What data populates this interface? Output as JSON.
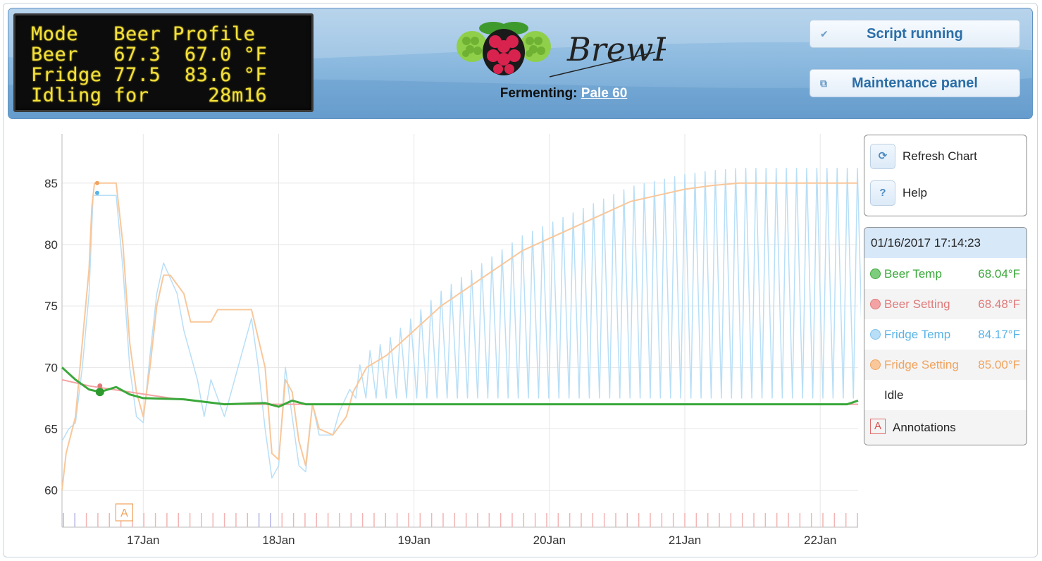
{
  "lcd": {
    "lines": [
      "Mode   Beer Profile",
      "Beer   67.3  67.0 °F",
      "Fridge 77.5  83.6 °F",
      "Idling for     28m16"
    ]
  },
  "header": {
    "logo_text": "BrewPi",
    "fermenting_label": "Fermenting:",
    "profile_name": "Pale 60",
    "script_button": "Script running",
    "maintenance_button": "Maintenance panel",
    "script_icon": "checkmark-icon",
    "maintenance_icon": "window-icon"
  },
  "tools": {
    "refresh_label": "Refresh Chart",
    "help_label": "Help",
    "refresh_icon": "refresh-icon",
    "help_icon": "question-icon"
  },
  "legend": {
    "timestamp": "01/16/2017 17:14:23",
    "items": [
      {
        "name": "Beer Temp",
        "value": "68.04°F",
        "color": "#3aa83a"
      },
      {
        "name": "Beer Setting",
        "value": "68.48°F",
        "color": "#e07a7a"
      },
      {
        "name": "Fridge Temp",
        "value": "84.17°F",
        "color": "#5ab3e6"
      },
      {
        "name": "Fridge Setting",
        "value": "85.00°F",
        "color": "#f0a35e"
      },
      {
        "name": "Idle",
        "value": ""
      }
    ],
    "annotations_label": "Annotations",
    "annotation_symbol": "A"
  },
  "chart_data": {
    "type": "line",
    "x_unit": "day",
    "xlim": [
      16.4,
      22.28
    ],
    "ylim": [
      57,
      89
    ],
    "y_ticks": [
      60,
      65,
      70,
      75,
      80,
      85
    ],
    "x_ticks": [
      {
        "value": 17,
        "label": "17Jan"
      },
      {
        "value": 18,
        "label": "18Jan"
      },
      {
        "value": 19,
        "label": "19Jan"
      },
      {
        "value": 20,
        "label": "20Jan"
      },
      {
        "value": 21,
        "label": "21Jan"
      },
      {
        "value": 22,
        "label": "22Jan"
      }
    ],
    "grid": true,
    "annotation": {
      "x": 16.86,
      "label": "A"
    },
    "series": [
      {
        "name": "Fridge Setting",
        "color": "#f9c79a",
        "points": [
          [
            16.4,
            60
          ],
          [
            16.43,
            63
          ],
          [
            16.5,
            66
          ],
          [
            16.55,
            72
          ],
          [
            16.6,
            78
          ],
          [
            16.62,
            83
          ],
          [
            16.64,
            85
          ],
          [
            16.8,
            85
          ],
          [
            16.85,
            80
          ],
          [
            16.9,
            72
          ],
          [
            16.95,
            68
          ],
          [
            17.0,
            66
          ],
          [
            17.05,
            70
          ],
          [
            17.1,
            75
          ],
          [
            17.15,
            77.5
          ],
          [
            17.2,
            77.5
          ],
          [
            17.3,
            76
          ],
          [
            17.35,
            73.7
          ],
          [
            17.5,
            73.7
          ],
          [
            17.55,
            74.7
          ],
          [
            17.8,
            74.7
          ],
          [
            17.9,
            70
          ],
          [
            17.95,
            63
          ],
          [
            18.0,
            62.5
          ],
          [
            18.05,
            69
          ],
          [
            18.1,
            68
          ],
          [
            18.15,
            64
          ],
          [
            18.2,
            62
          ],
          [
            18.25,
            67
          ],
          [
            18.3,
            65
          ],
          [
            18.4,
            64.5
          ],
          [
            18.5,
            66
          ],
          [
            18.55,
            68
          ],
          [
            18.65,
            70
          ],
          [
            18.8,
            71
          ],
          [
            19.0,
            73
          ],
          [
            19.2,
            75
          ],
          [
            19.4,
            76.5
          ],
          [
            19.6,
            78
          ],
          [
            19.8,
            79.5
          ],
          [
            20.0,
            80.5
          ],
          [
            20.2,
            81.5
          ],
          [
            20.4,
            82.5
          ],
          [
            20.6,
            83.5
          ],
          [
            20.8,
            84
          ],
          [
            21.0,
            84.5
          ],
          [
            21.2,
            84.8
          ],
          [
            21.4,
            85
          ],
          [
            22.28,
            85
          ]
        ]
      },
      {
        "name": "Fridge Temp",
        "color": "#b8dff7",
        "points": [
          [
            16.4,
            64
          ],
          [
            16.45,
            65
          ],
          [
            16.5,
            65.5
          ],
          [
            16.55,
            70
          ],
          [
            16.6,
            76
          ],
          [
            16.63,
            84
          ],
          [
            16.8,
            84
          ],
          [
            16.85,
            78
          ],
          [
            16.9,
            70
          ],
          [
            16.95,
            66
          ],
          [
            17.0,
            65.5
          ],
          [
            17.05,
            71
          ],
          [
            17.1,
            76
          ],
          [
            17.15,
            78.5
          ],
          [
            17.25,
            76
          ],
          [
            17.3,
            73
          ],
          [
            17.4,
            69
          ],
          [
            17.45,
            66
          ],
          [
            17.5,
            69
          ],
          [
            17.6,
            66
          ],
          [
            17.7,
            70
          ],
          [
            17.8,
            74
          ],
          [
            17.85,
            70
          ],
          [
            17.9,
            65
          ],
          [
            17.95,
            61
          ],
          [
            18.0,
            62
          ],
          [
            18.05,
            70
          ],
          [
            18.1,
            66
          ],
          [
            18.15,
            62
          ],
          [
            18.2,
            61.5
          ],
          [
            18.25,
            67
          ],
          [
            18.3,
            64.5
          ],
          [
            18.4,
            64.5
          ]
        ]
      },
      {
        "name": "Beer Setting",
        "color": "#f3a3a3",
        "points": [
          [
            16.4,
            69
          ],
          [
            16.6,
            68.5
          ],
          [
            16.9,
            68
          ],
          [
            17.2,
            67.5
          ],
          [
            17.6,
            67
          ],
          [
            18.0,
            67
          ],
          [
            22.28,
            67
          ]
        ]
      },
      {
        "name": "Beer Temp",
        "color": "#3aa83a",
        "points": [
          [
            16.4,
            70
          ],
          [
            16.5,
            69
          ],
          [
            16.6,
            68.2
          ],
          [
            16.68,
            68
          ],
          [
            16.8,
            68.4
          ],
          [
            16.9,
            67.8
          ],
          [
            17.0,
            67.5
          ],
          [
            17.3,
            67.4
          ],
          [
            17.6,
            67
          ],
          [
            17.9,
            67.1
          ],
          [
            18.0,
            66.8
          ],
          [
            18.1,
            67.3
          ],
          [
            18.2,
            67
          ],
          [
            18.5,
            67
          ],
          [
            19.0,
            67
          ],
          [
            20.0,
            67
          ],
          [
            21.0,
            67
          ],
          [
            22.2,
            67
          ],
          [
            22.28,
            67.3
          ]
        ]
      }
    ]
  }
}
